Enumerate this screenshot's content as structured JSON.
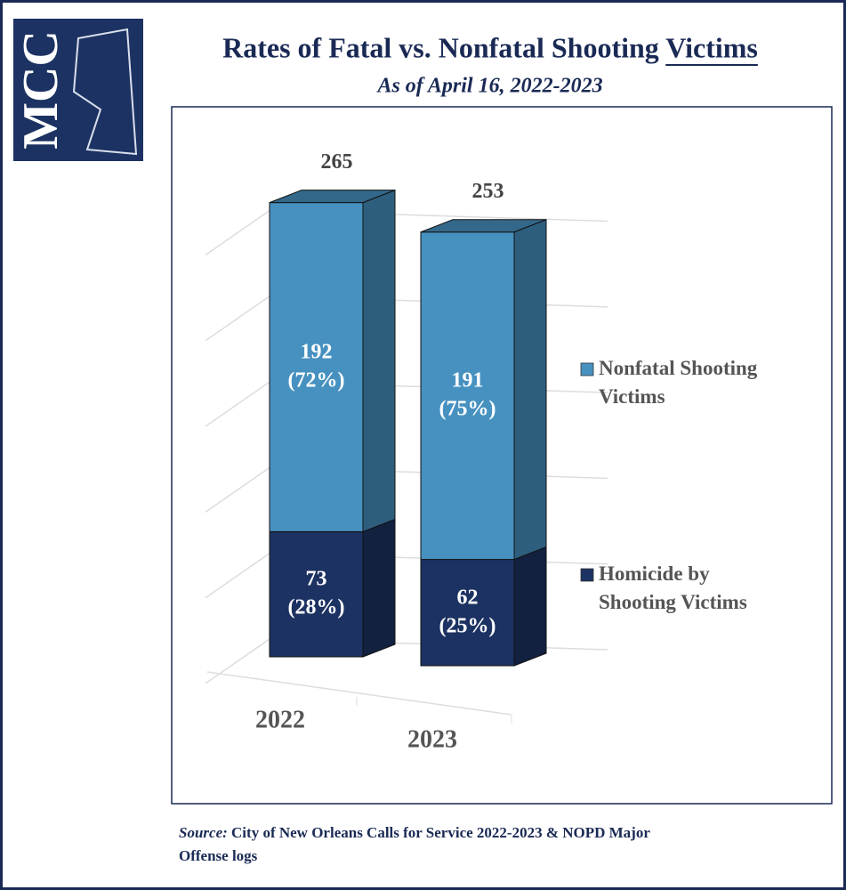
{
  "logo": "MCC",
  "chart_data": {
    "type": "bar3d_stacked",
    "title": "Rates of Fatal vs. Nonfatal Shooting Victims",
    "subtitle": "As of April 16, 2022-2023",
    "categories": [
      "2022",
      "2023"
    ],
    "series": [
      {
        "name": "Homicide by Shooting Victims",
        "color": "#1c3262",
        "values": [
          73,
          62
        ],
        "value_labels": [
          "73 (28%)",
          "62 (25%)"
        ]
      },
      {
        "name": "Nonfatal Shooting Victims",
        "color": "#4791c0",
        "values": [
          192,
          191
        ],
        "value_labels": [
          "192 (72%)",
          "191 (75%)"
        ]
      }
    ],
    "totals": [
      265,
      253
    ],
    "ylim": [
      0,
      270
    ],
    "yticks": [
      0,
      50,
      100,
      150,
      200,
      250
    ],
    "grid": true,
    "legend": "right",
    "source_label": "Source:",
    "source": "City of New Orleans Calls for Service 2022-2023 & NOPD Major Offense logs"
  }
}
